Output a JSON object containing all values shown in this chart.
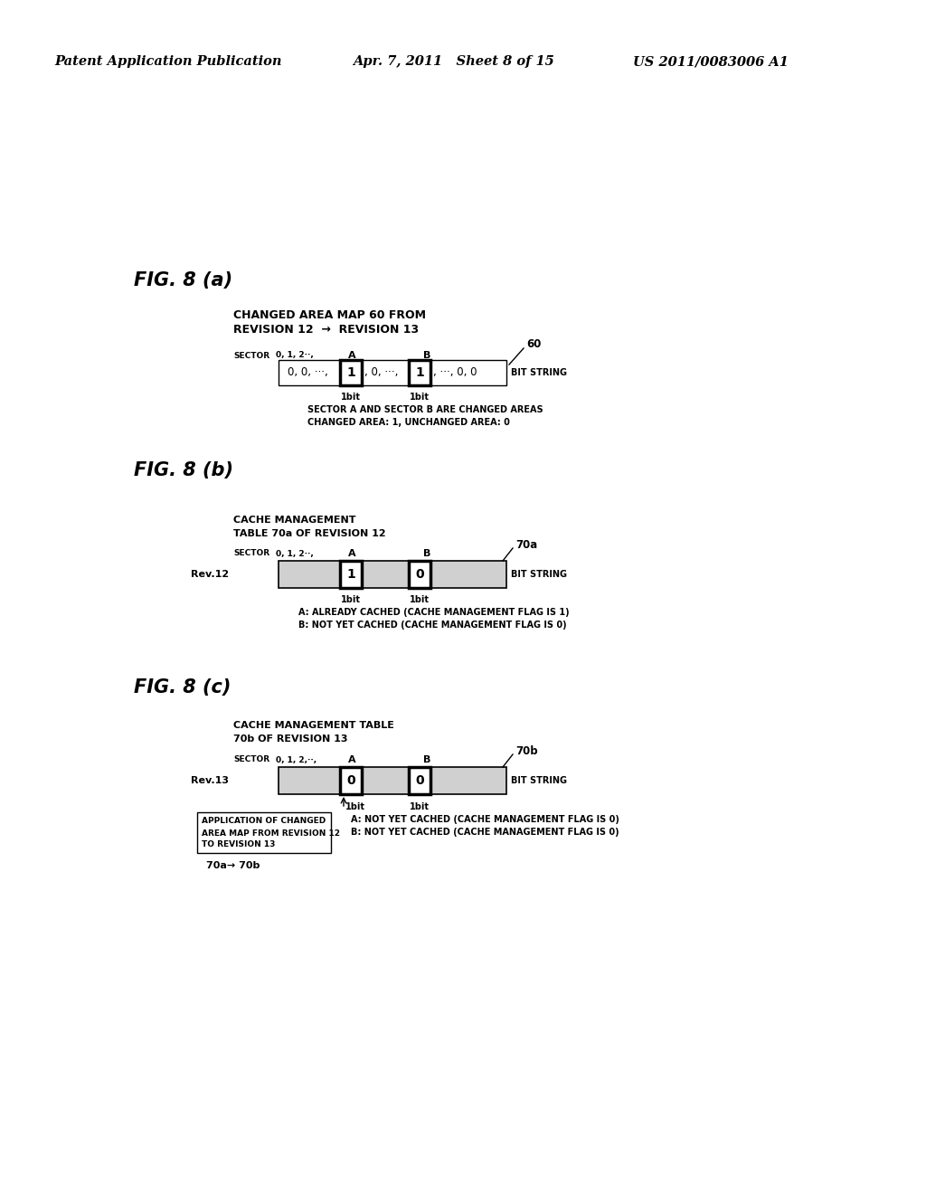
{
  "bg_color": "#ffffff",
  "header_left": "Patent Application Publication",
  "header_mid": "Apr. 7, 2011   Sheet 8 of 15",
  "header_right": "US 2011/0083006 A1",
  "fig_a_label": "FIG. 8 (a)",
  "fig_a_title1": "CHANGED AREA MAP 60 FROM",
  "fig_a_title2": "REVISION 12  →  REVISION 13",
  "fig_a_sector_label": "SECTOR",
  "fig_a_sector_vals": "0, 1, 2··,",
  "fig_a_col_A": "A",
  "fig_a_col_B": "B",
  "fig_a_ref_num": "60",
  "fig_a_cell1": "0, 0, ···,",
  "fig_a_cell2": "1",
  "fig_a_cell3": ", 0, ···,",
  "fig_a_cell4": "1",
  "fig_a_cell5": ", ···, 0, 0",
  "fig_a_bit_string": "BIT STRING",
  "fig_a_1bit_A": "1bit",
  "fig_a_1bit_B": "1bit",
  "fig_a_note1": "SECTOR A AND SECTOR B ARE CHANGED AREAS",
  "fig_a_note2": "CHANGED AREA: 1, UNCHANGED AREA: 0",
  "fig_b_label": "FIG. 8 (b)",
  "fig_b_title1": "CACHE MANAGEMENT",
  "fig_b_title2": "TABLE 70a OF REVISION 12",
  "fig_b_sector_label": "SECTOR",
  "fig_b_sector_vals": "0, 1, 2··,",
  "fig_b_col_A": "A",
  "fig_b_col_B": "B",
  "fig_b_ref_num": "70a",
  "fig_b_row_label": "Rev.12",
  "fig_b_cell1": "1",
  "fig_b_cell2": "0",
  "fig_b_bit_string": "BIT STRING",
  "fig_b_1bit_A": "1bit",
  "fig_b_1bit_B": "1bit",
  "fig_b_note1": "A: ALREADY CACHED (CACHE MANAGEMENT FLAG IS 1)",
  "fig_b_note2": "B: NOT YET CACHED (CACHE MANAGEMENT FLAG IS 0)",
  "fig_c_label": "FIG. 8 (c)",
  "fig_c_title1": "CACHE MANAGEMENT TABLE",
  "fig_c_title2": "70b OF REVISION 13",
  "fig_c_sector_label": "SECTOR",
  "fig_c_sector_vals": "0, 1, 2,··,",
  "fig_c_col_A": "A",
  "fig_c_col_B": "B",
  "fig_c_ref_num": "70b",
  "fig_c_row_label": "Rev.13",
  "fig_c_cell1": "0",
  "fig_c_cell2": "0",
  "fig_c_bit_string": "BIT STRING",
  "fig_c_1bit_A": "1bit",
  "fig_c_1bit_B": "1bit",
  "fig_c_box_text1": "APPLICATION OF CHANGED",
  "fig_c_box_text2": "AREA MAP FROM REVISION 12",
  "fig_c_box_text3": "TO REVISION 13",
  "fig_c_bottom_label": "70a→ 70b",
  "fig_c_note1": "A: NOT YET CACHED (CACHE MANAGEMENT FLAG IS 0)",
  "fig_c_note2": "B: NOT YET CACHED (CACHE MANAGEMENT FLAG IS 0)"
}
